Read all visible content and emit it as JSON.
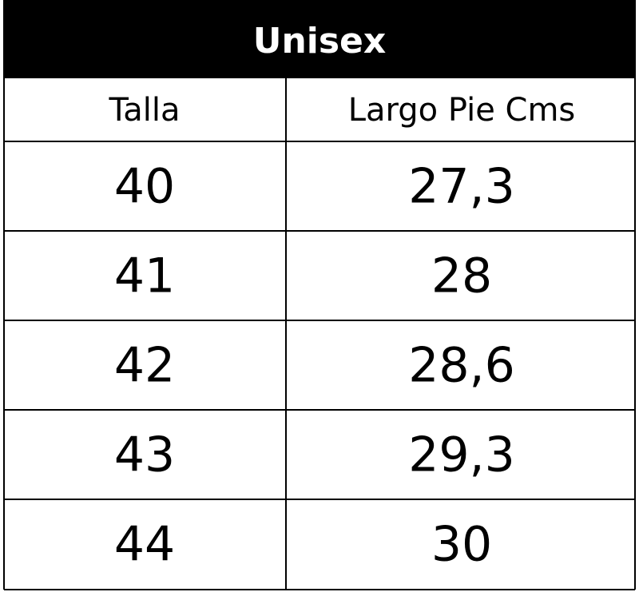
{
  "table": {
    "title": "Unisex",
    "headers": [
      "Talla",
      "Largo Pie Cms"
    ],
    "rows": [
      [
        "40",
        "27,3"
      ],
      [
        "41",
        "28"
      ],
      [
        "42",
        "28,6"
      ],
      [
        "43",
        "29,3"
      ],
      [
        "44",
        "30"
      ]
    ]
  }
}
